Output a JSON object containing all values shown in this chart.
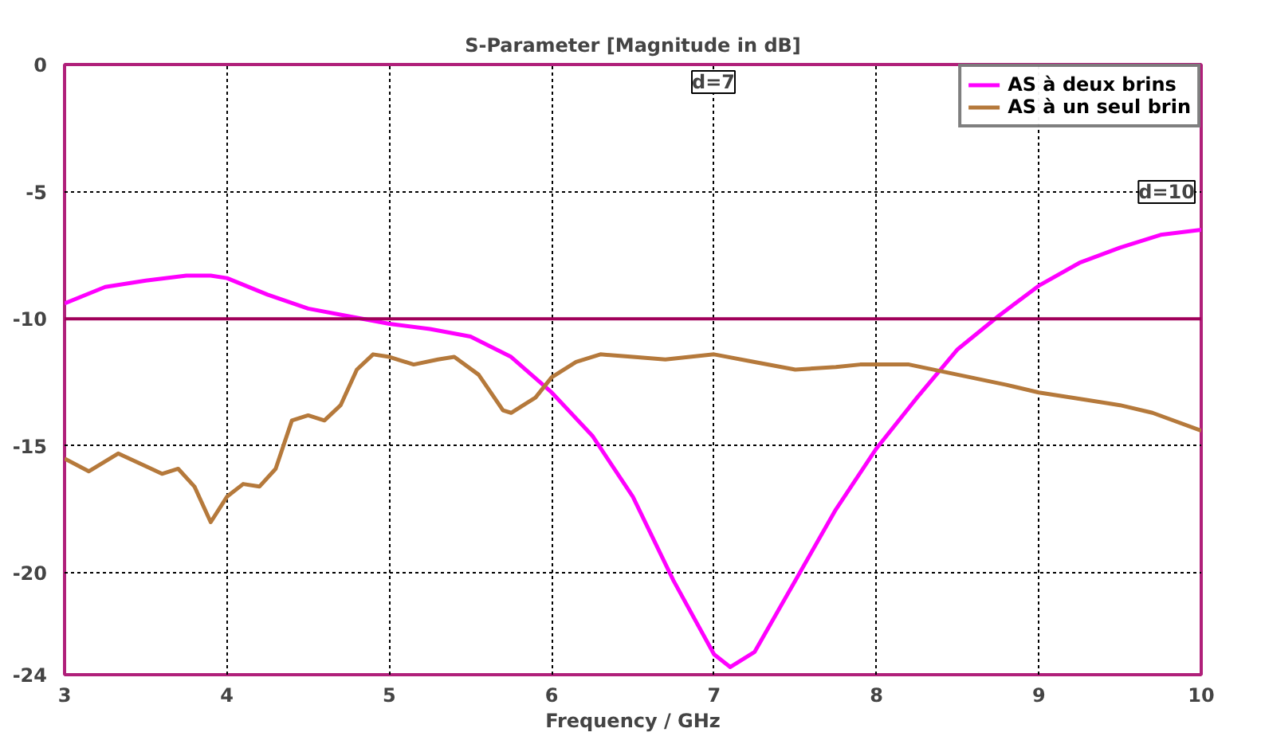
{
  "chart_data": {
    "type": "line",
    "title": "S-Parameter [Magnitude in dB]",
    "xlabel": "Frequency / GHz",
    "xlim": [
      3,
      10
    ],
    "ylim": [
      -24,
      0
    ],
    "xticks": [
      3,
      4,
      5,
      6,
      7,
      8,
      9,
      10
    ],
    "yticks": [
      0,
      -5,
      -10,
      -15,
      -20,
      -24
    ],
    "grid": true,
    "legend": "top right",
    "line_style": "solid",
    "ref_lines": [
      {
        "axis": "y",
        "value": -10,
        "label": null,
        "color": "#a0005a"
      }
    ],
    "annotations": [
      "d=7",
      "d=10"
    ],
    "series": [
      {
        "name": "AS à deux brins",
        "color": "#ff00ff",
        "x": [
          3,
          3.25,
          3.5,
          3.75,
          3.9,
          4,
          4.25,
          4.5,
          4.75,
          5,
          5.25,
          5.5,
          5.75,
          6,
          6.25,
          6.5,
          6.75,
          7,
          7.1,
          7.25,
          7.5,
          7.75,
          8,
          8.25,
          8.5,
          8.75,
          9,
          9.25,
          9.5,
          9.75,
          10
        ],
        "values": [
          -9.4,
          -8.75,
          -8.5,
          -8.3,
          -8.3,
          -8.4,
          -9.05,
          -9.6,
          -9.9,
          -10.2,
          -10.4,
          -10.7,
          -11.5,
          -12.9,
          -14.6,
          -17.0,
          -20.3,
          -23.2,
          -23.7,
          -23.1,
          -20.3,
          -17.5,
          -15.1,
          -13.1,
          -11.2,
          -9.9,
          -8.7,
          -7.8,
          -7.2,
          -6.7,
          -6.5
        ]
      },
      {
        "name": "AS à un seul brin",
        "color": "#b5793b",
        "x": [
          3,
          3.15,
          3.33,
          3.5,
          3.6,
          3.7,
          3.8,
          3.9,
          4,
          4.1,
          4.2,
          4.3,
          4.4,
          4.5,
          4.6,
          4.7,
          4.8,
          4.9,
          5,
          5.15,
          5.3,
          5.4,
          5.55,
          5.7,
          5.75,
          5.9,
          6,
          6.15,
          6.3,
          6.5,
          6.7,
          7,
          7.25,
          7.5,
          7.75,
          7.9,
          8.2,
          8.5,
          8.8,
          9,
          9.3,
          9.5,
          9.7,
          10
        ],
        "values": [
          -15.5,
          -16.0,
          -15.3,
          -15.8,
          -16.1,
          -15.9,
          -16.6,
          -18.0,
          -17.0,
          -16.5,
          -16.6,
          -15.9,
          -14.0,
          -13.8,
          -14.0,
          -13.4,
          -12.0,
          -11.4,
          -11.5,
          -11.8,
          -11.6,
          -11.5,
          -12.2,
          -13.6,
          -13.7,
          -13.1,
          -12.3,
          -11.7,
          -11.4,
          -11.5,
          -11.6,
          -11.4,
          -11.7,
          -12.0,
          -11.9,
          -11.8,
          -11.8,
          -12.2,
          -12.6,
          -12.9,
          -13.2,
          -13.4,
          -13.7,
          -14.4
        ]
      }
    ]
  }
}
